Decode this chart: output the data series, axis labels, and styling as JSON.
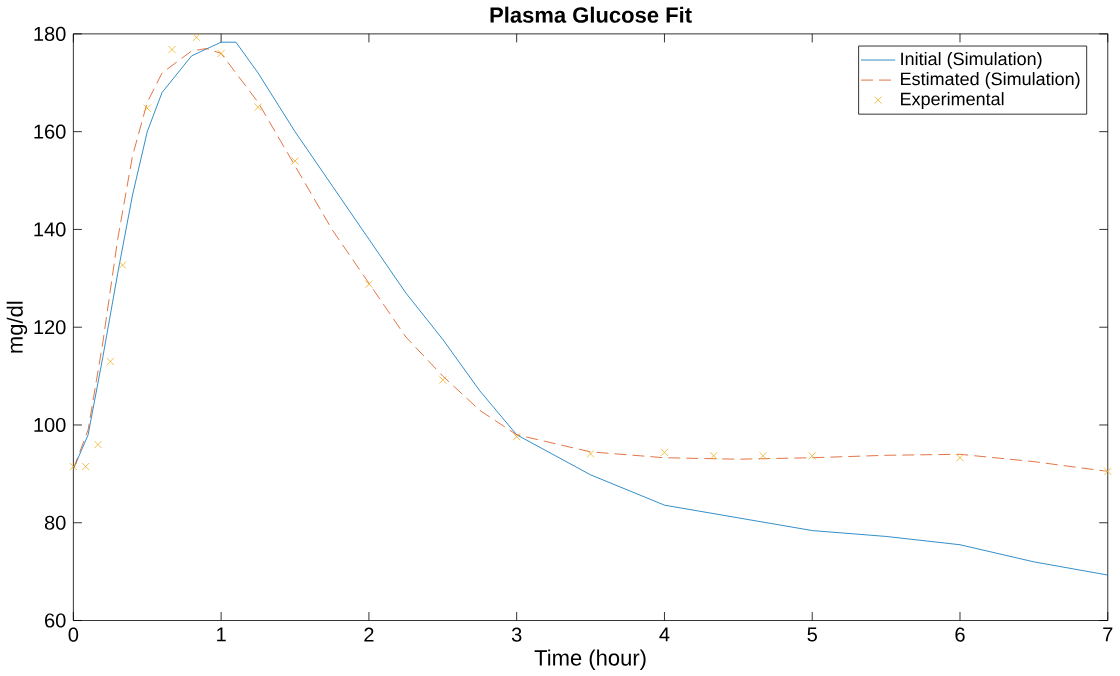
{
  "chart_data": {
    "type": "line",
    "title": "Plasma Glucose Fit",
    "xlabel": "Time (hour)",
    "ylabel": "mg/dl",
    "xlim": [
      0,
      7
    ],
    "ylim": [
      60,
      180
    ],
    "xticks": [
      0,
      1,
      2,
      3,
      4,
      5,
      6,
      7
    ],
    "yticks": [
      60,
      80,
      100,
      120,
      140,
      160,
      180
    ],
    "grid": false,
    "legend": "top right",
    "series": [
      {
        "name": "Initial (Simulation)",
        "color": "#0072bd",
        "line_style": "solid",
        "marker": "none",
        "x": [
          0,
          0.1,
          0.2,
          0.3,
          0.4,
          0.5,
          0.6,
          0.8,
          1.0,
          1.1,
          1.25,
          1.5,
          1.75,
          2,
          2.25,
          2.5,
          2.75,
          3,
          3.5,
          4,
          4.5,
          5,
          5.5,
          6,
          6.5,
          7
        ],
        "values": [
          91,
          98,
          114,
          131,
          147,
          160,
          168,
          175.5,
          178.3,
          178.3,
          172,
          160,
          149,
          138,
          127,
          117.5,
          107,
          98,
          89.8,
          83.6,
          81,
          78.4,
          77.2,
          75.5,
          72,
          69.3
        ]
      },
      {
        "name": "Estimated (Simulation)",
        "color": "#d95319",
        "line_style": "dashed",
        "marker": "none",
        "x": [
          0,
          0.1,
          0.2,
          0.3,
          0.4,
          0.5,
          0.6,
          0.8,
          0.9,
          1.0,
          1.25,
          1.5,
          1.75,
          2,
          2.25,
          2.5,
          2.75,
          3,
          3.5,
          4,
          4.5,
          5,
          5.5,
          6,
          6.5,
          7
        ],
        "values": [
          91,
          99,
          117,
          138,
          155,
          166,
          172,
          176.5,
          177,
          176,
          166,
          153,
          140,
          129,
          118,
          110,
          103,
          98,
          94.5,
          93.3,
          93,
          93.3,
          93.8,
          94,
          92.5,
          90.5
        ]
      },
      {
        "name": "Experimental",
        "type": "scatter",
        "color": "#edb120",
        "marker": "cross",
        "x": [
          0,
          0.083,
          0.167,
          0.25,
          0.333,
          0.5,
          0.667,
          0.833,
          1,
          1.25,
          1.5,
          2,
          2.5,
          3,
          3.5,
          4,
          4.333,
          4.667,
          5,
          6,
          7
        ],
        "values": [
          91.5,
          91.5,
          96,
          113,
          132.7,
          164.8,
          176.8,
          179.3,
          176,
          165,
          154,
          128.8,
          109.2,
          97.6,
          94.1,
          94.4,
          93.7,
          93.7,
          93.7,
          93.3,
          90.5
        ]
      }
    ]
  }
}
